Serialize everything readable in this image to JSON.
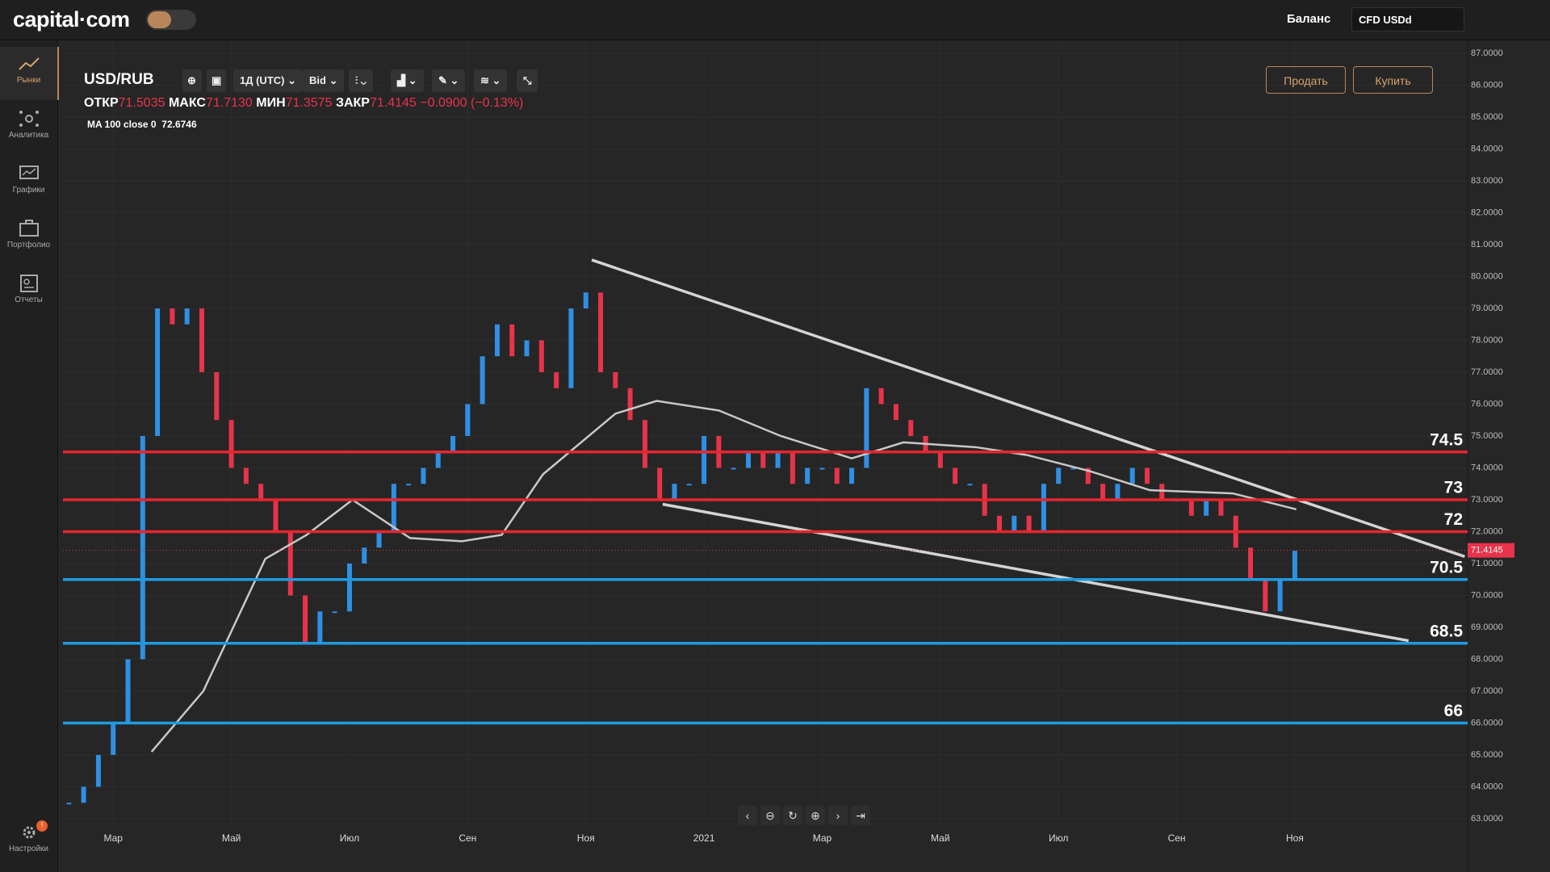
{
  "header": {
    "logo": "capital·com",
    "balance": "Баланс",
    "account": "CFD USDd"
  },
  "sidebar": {
    "items": [
      "Рынки",
      "Аналитика",
      "Графики",
      "Портфолио",
      "Отчеты"
    ],
    "settings": "Настройки",
    "badge": "!"
  },
  "toolbar": {
    "symbol": "USD/RUB",
    "interval": "1Д (UTC)",
    "price_type": "Bid",
    "sell": "Продать",
    "buy": "Купить"
  },
  "ohlc": {
    "open_label": "ОТКР",
    "open": "71.5035",
    "high_label": "МАКС",
    "high": "71.7130",
    "low_label": "МИН",
    "low": "71.3575",
    "close_label": "ЗАКР",
    "close": "71.4145",
    "change": "−0.0900 (−0.13%)"
  },
  "indicator": {
    "label": "MA 100 close 0",
    "value": "72.6746"
  },
  "chart_data": {
    "type": "candlestick",
    "x": [
      5,
      6,
      7,
      8,
      9,
      10,
      11,
      12,
      13,
      14,
      15,
      16,
      17,
      18,
      19,
      20,
      21,
      22,
      23,
      24,
      25,
      26,
      27,
      28,
      29,
      30,
      31,
      32,
      33,
      34,
      35,
      36,
      37,
      38,
      39,
      40,
      41,
      42,
      43,
      44,
      45,
      46,
      47,
      48,
      49,
      50,
      51,
      52,
      53,
      54,
      55,
      56,
      57,
      58,
      59,
      60,
      61,
      62,
      63,
      64,
      65,
      66,
      67,
      68,
      69,
      70,
      71,
      72,
      73,
      74,
      75,
      76,
      77,
      78,
      79,
      80,
      81,
      82,
      83,
      84,
      85,
      86,
      87,
      88
    ],
    "values": [
      63.5,
      64,
      65,
      66,
      68,
      75,
      79,
      78.5,
      79,
      77,
      75.5,
      74,
      73.5,
      73,
      72,
      70,
      68.5,
      69.5,
      69.5,
      71,
      71.5,
      72,
      73.5,
      73.5,
      74,
      74.5,
      75,
      76,
      77.5,
      78.5,
      77.5,
      78,
      77,
      76.5,
      79,
      79.5,
      77,
      76.5,
      75.5,
      74,
      73,
      73.5,
      73.5,
      75,
      74,
      74,
      74.5,
      74,
      74.5,
      73.5,
      74,
      74,
      73.5,
      74,
      76.5,
      76,
      75.5,
      75,
      74.5,
      74,
      73.5,
      73.5,
      72.5,
      72,
      72.5,
      72,
      73.5,
      74,
      74,
      73.5,
      73,
      73.5,
      74,
      73.5,
      73,
      73,
      72.5,
      73,
      72.5,
      71.5,
      70.5,
      69.5,
      70.5,
      71.4
    ],
    "up_color": "#2f8fe6",
    "down_color": "#e8334a",
    "ma": {
      "x": [
        10.6,
        14.1,
        18.3,
        21.1,
        24.2,
        28.1,
        31.6,
        34.3,
        37.1,
        42.0,
        44.8,
        49.0,
        53.2,
        58.0,
        61.5,
        66.4,
        69.9,
        74.1,
        78.2,
        83.8,
        88.1
      ],
      "values": [
        65.1,
        67.0,
        71.15,
        71.9,
        73.0,
        71.8,
        71.7,
        71.9,
        73.8,
        75.7,
        76.1,
        75.8,
        75.0,
        74.3,
        74.8,
        74.65,
        74.4,
        73.9,
        73.3,
        73.2,
        72.7
      ],
      "color": "#c8c8c8"
    },
    "levels": [
      {
        "value": 74.5,
        "color": "#e5262f"
      },
      {
        "value": 73,
        "color": "#e5262f"
      },
      {
        "value": 72,
        "color": "#e5262f"
      },
      {
        "value": 70.5,
        "color": "#1e9be0"
      },
      {
        "value": 68.5,
        "color": "#1e9be0"
      },
      {
        "value": 66,
        "color": "#1e9be0"
      }
    ],
    "trendlines": [
      {
        "x": [
          40.4,
          99.5
        ],
        "values": [
          80.52,
          71.22
        ]
      },
      {
        "x": [
          45.2,
          95.7
        ],
        "values": [
          72.86,
          68.58
        ]
      }
    ],
    "trend_color": "#d4d4d4",
    "last_price": 71.4145,
    "xlim": [
      4.6,
      99.7
    ],
    "ylim": [
      63,
      87
    ],
    "xticks": [
      {
        "value": 8,
        "label": "Мар"
      },
      {
        "value": 16,
        "label": "Май"
      },
      {
        "value": 24,
        "label": "Июл"
      },
      {
        "value": 32,
        "label": "Сен"
      },
      {
        "value": 40,
        "label": "Ноя"
      },
      {
        "value": 48,
        "label": "2021"
      },
      {
        "value": 56,
        "label": "Мар"
      },
      {
        "value": 64,
        "label": "Май"
      },
      {
        "value": 72,
        "label": "Июл"
      },
      {
        "value": 80,
        "label": "Сен"
      },
      {
        "value": 88,
        "label": "Ноя"
      }
    ],
    "yticks": [
      {
        "value": 63,
        "label": "63.0000"
      },
      {
        "value": 64,
        "label": "64.0000"
      },
      {
        "value": 65,
        "label": "65.0000"
      },
      {
        "value": 66,
        "label": "66.0000"
      },
      {
        "value": 67,
        "label": "67.0000"
      },
      {
        "value": 68,
        "label": "68.0000"
      },
      {
        "value": 69,
        "label": "69.0000"
      },
      {
        "value": 70,
        "label": "70.0000"
      },
      {
        "value": 71,
        "label": "71.0000"
      },
      {
        "value": 72,
        "label": "72.0000"
      },
      {
        "value": 73,
        "label": "73.0000"
      },
      {
        "value": 74,
        "label": "74.0000"
      },
      {
        "value": 75,
        "label": "75.0000"
      },
      {
        "value": 76,
        "label": "76.0000"
      },
      {
        "value": 77,
        "label": "77.0000"
      },
      {
        "value": 78,
        "label": "78.0000"
      },
      {
        "value": 79,
        "label": "79.0000"
      },
      {
        "value": 80,
        "label": "80.0000"
      },
      {
        "value": 81,
        "label": "81.0000"
      },
      {
        "value": 82,
        "label": "82.0000"
      },
      {
        "value": 83,
        "label": "83.0000"
      },
      {
        "value": 84,
        "label": "84.0000"
      },
      {
        "value": 85,
        "label": "85.0000"
      },
      {
        "value": 86,
        "label": "86.0000"
      },
      {
        "value": 87,
        "label": "87.0000"
      }
    ],
    "grid": true
  }
}
